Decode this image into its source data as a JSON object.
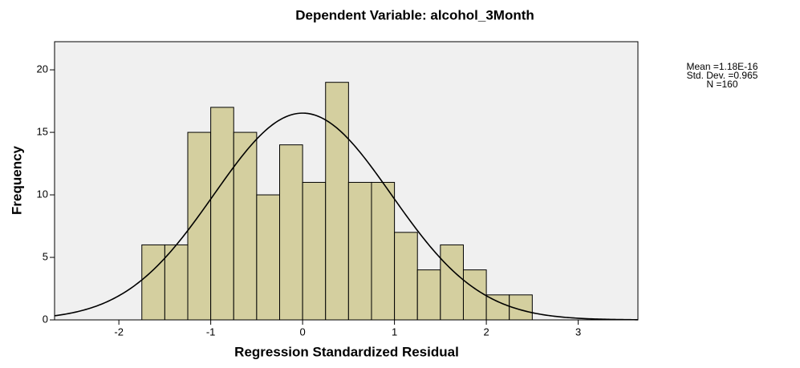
{
  "chart_data": {
    "type": "histogram",
    "title": "Dependent Variable: alcohol_3Month",
    "xlabel": "Regression Standardized Residual",
    "ylabel": "Frequency",
    "bins": [
      -1.75,
      -1.5,
      -1.25,
      -1.0,
      -0.75,
      -0.5,
      -0.25,
      0.0,
      0.25,
      0.5,
      0.75,
      1.0,
      1.25,
      1.5,
      1.75,
      2.0,
      2.25,
      2.5
    ],
    "values": [
      6,
      6,
      15,
      17,
      15,
      10,
      14,
      11,
      19,
      11,
      11,
      7,
      4,
      6,
      4,
      2,
      2
    ],
    "color": "#d4cf9f",
    "edge_color": "#000000",
    "background": "#f0f0f0",
    "xlim": [
      -2.7,
      3.65
    ],
    "ylim": [
      0,
      22.25
    ],
    "xticks": [
      -2,
      -1,
      0,
      1,
      2,
      3
    ],
    "yticks": [
      0,
      5,
      10,
      15,
      20
    ],
    "normal_curve": true,
    "stats": [
      {
        "value": 1.18e-16,
        "label": "Mean =1.18E-16"
      },
      {
        "value": 0.965,
        "label": "Std. Dev. =0.965"
      },
      {
        "value": 160,
        "label": "N =160"
      }
    ]
  }
}
